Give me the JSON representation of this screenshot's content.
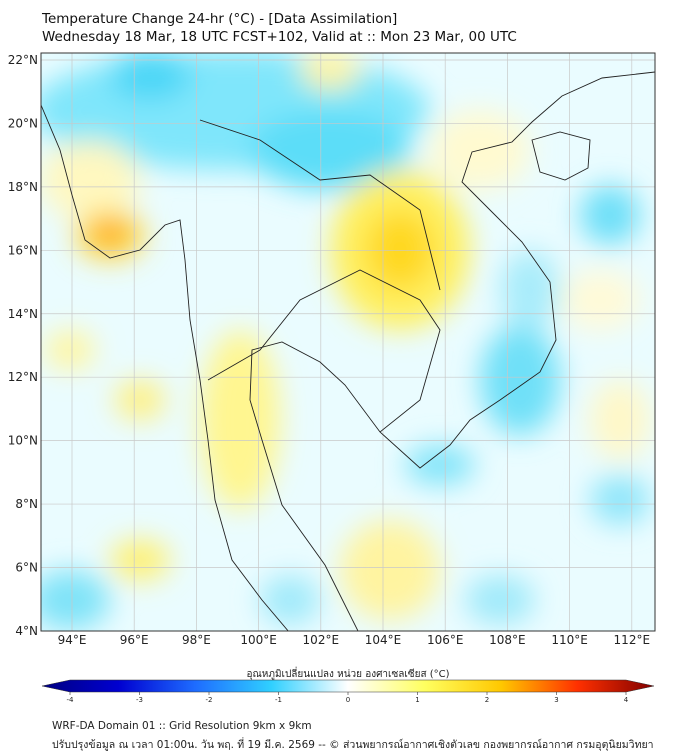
{
  "title": {
    "line1": "Temperature Change 24-hr (°C) - [Data Assimilation]",
    "line2": "Wednesday 18 Mar, 18 UTC FCST+102, Valid at :: Mon 23 Mar, 00 UTC"
  },
  "map": {
    "lon_labels": [
      "94°E",
      "96°E",
      "98°E",
      "100°E",
      "102°E",
      "104°E",
      "106°E",
      "108°E",
      "110°E",
      "112°E"
    ],
    "lat_labels": [
      "22°N",
      "20°N",
      "18°N",
      "16°N",
      "14°N",
      "12°N",
      "10°N",
      "8°N",
      "6°N",
      "4°N"
    ],
    "lon_values": [
      94,
      96,
      98,
      100,
      102,
      104,
      106,
      108,
      110,
      112
    ],
    "lat_values": [
      22,
      20,
      18,
      16,
      14,
      12,
      10,
      8,
      6,
      4
    ]
  },
  "colorbar": {
    "label": "อุณหภูมิเปลี่ยนแปลง หน่วย องศาเซลเซียส (°C)",
    "ticks": [
      "-4",
      "-3",
      "-2",
      "-1",
      "0",
      "1",
      "2",
      "3",
      "4"
    ],
    "colors": [
      "#000080",
      "#0000d0",
      "#1e6cff",
      "#30d0ff",
      "#ffffff",
      "#ffff60",
      "#ffc800",
      "#ff3000",
      "#800000"
    ]
  },
  "footer": {
    "line1": "WRF-DA Domain 01 :: Grid Resolution 9km x 9km",
    "line2": "ปรับปรุงข้อมูล ณ เวลา 01:00น. วัน พฤ. ที่ 19 มี.ค. 2569 -- © ส่วนพยากรณ์อากาศเชิงตัวเลข กองพยากรณ์อากาศ กรมอุตุนิยมวิทยา"
  }
}
